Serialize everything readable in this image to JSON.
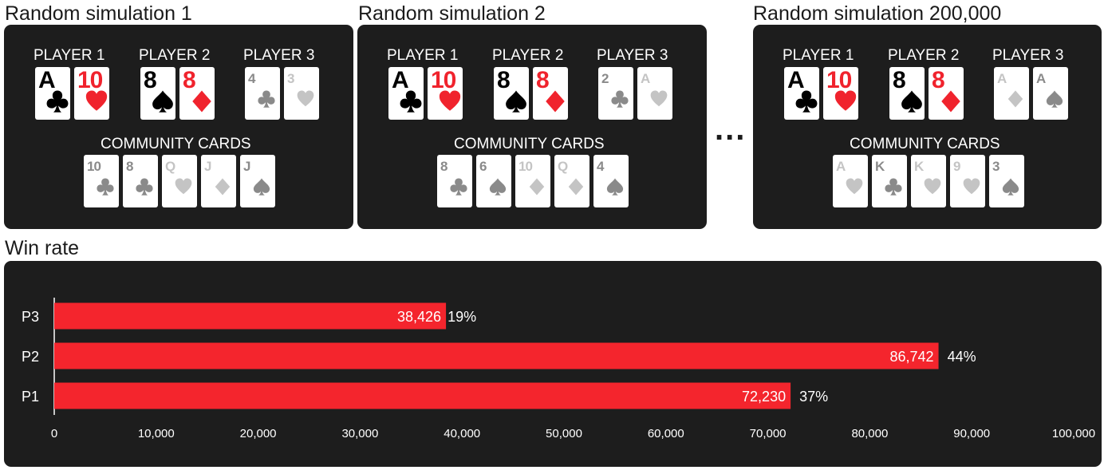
{
  "simulations": [
    {
      "title": "Random simulation 1",
      "players": [
        {
          "label": "PLAYER 1",
          "cards": [
            {
              "rank": "A",
              "suit": "club",
              "style": "black"
            },
            {
              "rank": "10",
              "suit": "heart",
              "style": "red"
            }
          ]
        },
        {
          "label": "PLAYER 2",
          "cards": [
            {
              "rank": "8",
              "suit": "spade",
              "style": "black"
            },
            {
              "rank": "8",
              "suit": "diamond",
              "style": "red"
            }
          ]
        },
        {
          "label": "PLAYER 3",
          "cards": [
            {
              "rank": "4",
              "suit": "club",
              "style": "dim-dark"
            },
            {
              "rank": "3",
              "suit": "heart",
              "style": "dim-light"
            }
          ]
        }
      ],
      "community_label": "COMMUNITY CARDS",
      "community": [
        {
          "rank": "10",
          "suit": "club",
          "style": "dim-dark"
        },
        {
          "rank": "8",
          "suit": "club",
          "style": "dim-dark"
        },
        {
          "rank": "Q",
          "suit": "heart",
          "style": "dim-light"
        },
        {
          "rank": "J",
          "suit": "diamond",
          "style": "dim-light"
        },
        {
          "rank": "J",
          "suit": "spade",
          "style": "dim-dark"
        }
      ]
    },
    {
      "title": "Random simulation 2",
      "players": [
        {
          "label": "PLAYER 1",
          "cards": [
            {
              "rank": "A",
              "suit": "club",
              "style": "black"
            },
            {
              "rank": "10",
              "suit": "heart",
              "style": "red"
            }
          ]
        },
        {
          "label": "PLAYER 2",
          "cards": [
            {
              "rank": "8",
              "suit": "spade",
              "style": "black"
            },
            {
              "rank": "8",
              "suit": "diamond",
              "style": "red"
            }
          ]
        },
        {
          "label": "PLAYER 3",
          "cards": [
            {
              "rank": "2",
              "suit": "club",
              "style": "dim-dark"
            },
            {
              "rank": "A",
              "suit": "heart",
              "style": "dim-light"
            }
          ]
        }
      ],
      "community_label": "COMMUNITY CARDS",
      "community": [
        {
          "rank": "8",
          "suit": "club",
          "style": "dim-dark"
        },
        {
          "rank": "6",
          "suit": "spade",
          "style": "dim-dark"
        },
        {
          "rank": "10",
          "suit": "diamond",
          "style": "dim-light"
        },
        {
          "rank": "Q",
          "suit": "diamond",
          "style": "dim-light"
        },
        {
          "rank": "4",
          "suit": "spade",
          "style": "dim-dark"
        }
      ]
    },
    {
      "title": "Random simulation 200,000",
      "players": [
        {
          "label": "PLAYER 1",
          "cards": [
            {
              "rank": "A",
              "suit": "club",
              "style": "black"
            },
            {
              "rank": "10",
              "suit": "heart",
              "style": "red"
            }
          ]
        },
        {
          "label": "PLAYER 2",
          "cards": [
            {
              "rank": "8",
              "suit": "spade",
              "style": "black"
            },
            {
              "rank": "8",
              "suit": "diamond",
              "style": "red"
            }
          ]
        },
        {
          "label": "PLAYER 3",
          "cards": [
            {
              "rank": "A",
              "suit": "diamond",
              "style": "dim-light"
            },
            {
              "rank": "A",
              "suit": "spade",
              "style": "dim-dark"
            }
          ]
        }
      ],
      "community_label": "COMMUNITY CARDS",
      "community": [
        {
          "rank": "A",
          "suit": "heart",
          "style": "dim-light"
        },
        {
          "rank": "K",
          "suit": "club",
          "style": "dim-dark"
        },
        {
          "rank": "K",
          "suit": "heart",
          "style": "dim-light"
        },
        {
          "rank": "9",
          "suit": "heart",
          "style": "dim-light"
        },
        {
          "rank": "3",
          "suit": "spade",
          "style": "dim-dark"
        }
      ]
    }
  ],
  "ellipsis": "...",
  "colors": {
    "panel": "#1d1d1d",
    "red": "#f0232d",
    "card_black": "#000000",
    "dim_dark": "#8a8a8a",
    "dim_light": "#c4c4c4",
    "bar": "#f4252d",
    "axis_text": "#ffffff"
  },
  "chart_data": {
    "type": "bar",
    "orientation": "horizontal",
    "title": "Win rate",
    "categories": [
      "P3",
      "P2",
      "P1"
    ],
    "values": [
      38426,
      86742,
      72230
    ],
    "value_labels": [
      "38,426",
      "86,742",
      "72,230"
    ],
    "percent_labels": [
      "19%",
      "44%",
      "37%"
    ],
    "xlim": [
      0,
      100000
    ],
    "x_ticks": [
      0,
      10000,
      20000,
      30000,
      40000,
      50000,
      60000,
      70000,
      80000,
      90000,
      100000
    ],
    "x_tick_labels": [
      "0",
      "10,000",
      "20,000",
      "30,000",
      "40,000",
      "50,000",
      "60,000",
      "70,000",
      "80,000",
      "90,000",
      "100,000"
    ],
    "grid": false
  }
}
